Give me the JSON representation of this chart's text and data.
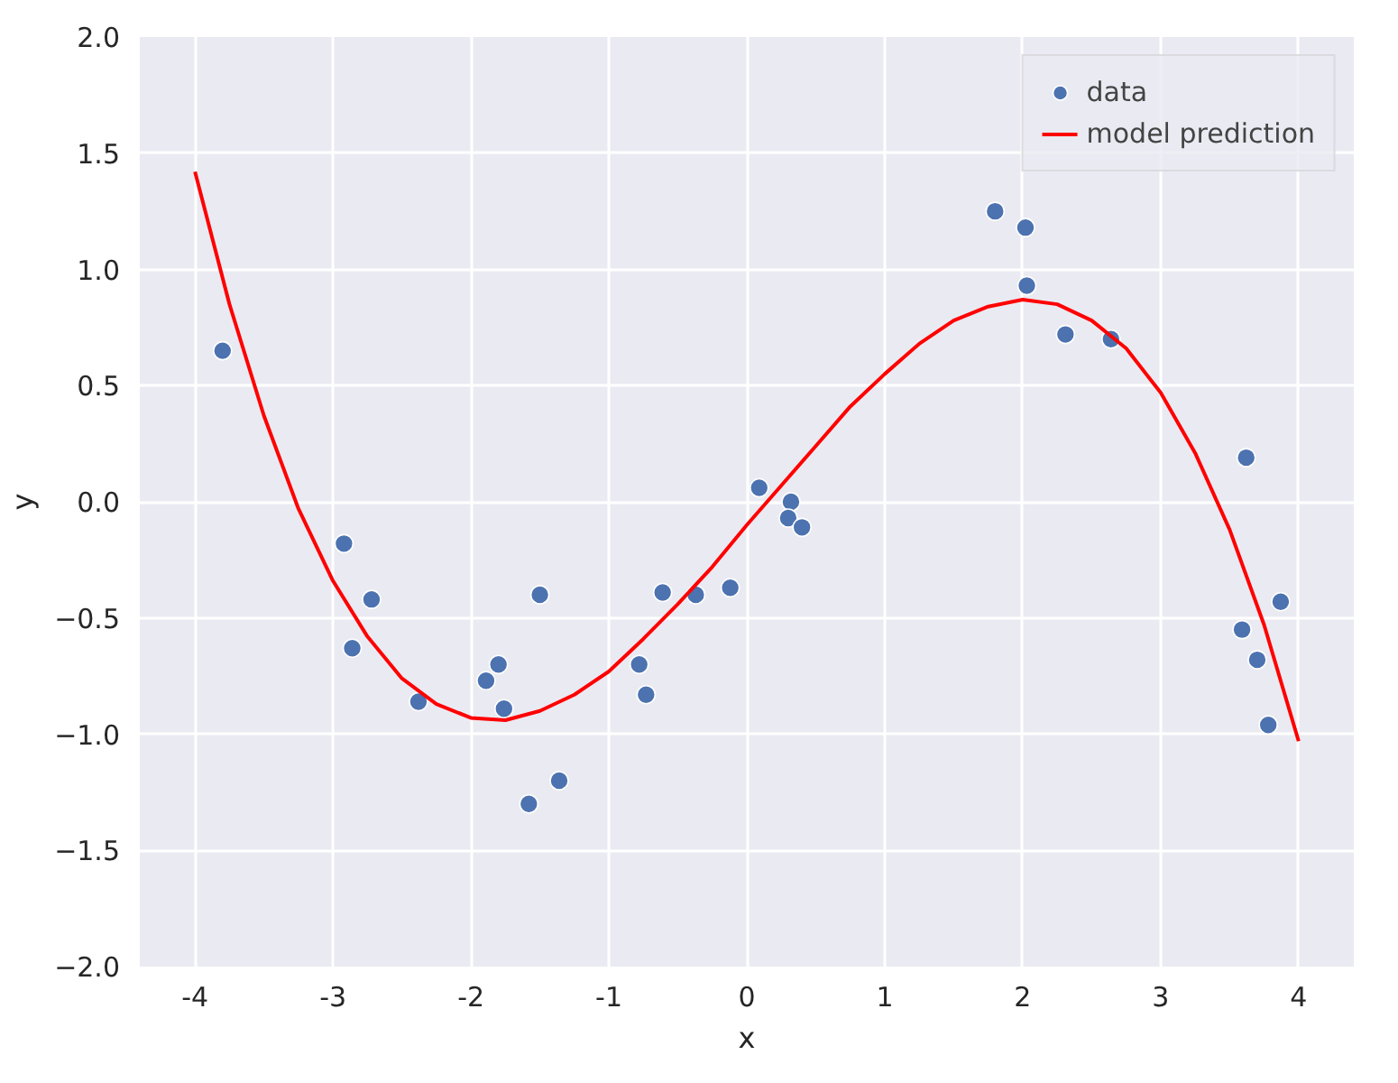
{
  "chart_data": {
    "type": "scatter",
    "xlabel": "x",
    "ylabel": "y",
    "xlim": [
      -4.4,
      4.4
    ],
    "ylim": [
      -2.0,
      2.0
    ],
    "xticks": [
      -4,
      -3,
      -2,
      -1,
      0,
      1,
      2,
      3,
      4
    ],
    "yticks": [
      {
        "value": -2,
        "label": "−2.0"
      },
      {
        "value": -1.5,
        "label": "−1.5"
      },
      {
        "value": -1,
        "label": "−1.0"
      },
      {
        "value": -0.5,
        "label": "−0.5"
      },
      {
        "value": 0,
        "label": "0.0"
      },
      {
        "value": 0.5,
        "label": "0.5"
      },
      {
        "value": 1,
        "label": "1.0"
      },
      {
        "value": 1.5,
        "label": "1.5"
      },
      {
        "value": 2,
        "label": "2.0"
      }
    ],
    "grid": true,
    "legend": "top right",
    "series": [
      {
        "name": "data",
        "type": "scatter",
        "marker": "circle",
        "color": "#4c72b0",
        "x": [
          -3.8,
          -2.92,
          -2.86,
          -2.72,
          -2.38,
          -1.89,
          -1.8,
          -1.76,
          -1.58,
          -1.5,
          -1.36,
          -0.78,
          -0.73,
          -0.61,
          -0.37,
          -0.12,
          0.09,
          0.32,
          0.3,
          0.4,
          1.8,
          2.02,
          2.03,
          2.31,
          2.64,
          3.62,
          3.59,
          3.7,
          3.78,
          3.87
        ],
        "values": [
          0.65,
          -0.18,
          -0.63,
          -0.42,
          -0.86,
          -0.77,
          -0.7,
          -0.89,
          -1.3,
          -0.4,
          -1.2,
          -0.7,
          -0.83,
          -0.39,
          -0.4,
          -0.37,
          0.06,
          0.0,
          -0.07,
          -0.11,
          1.25,
          1.18,
          0.93,
          0.72,
          0.7,
          0.19,
          -0.55,
          -0.68,
          -0.96,
          -0.43
        ]
      },
      {
        "name": "model prediction",
        "type": "line",
        "color": "#ff0000",
        "x": [
          -4,
          -3.75,
          -3.5,
          -3.25,
          -3,
          -2.75,
          -2.5,
          -2.25,
          -2,
          -1.75,
          -1.5,
          -1.25,
          -1,
          -0.75,
          -0.5,
          -0.25,
          0,
          0.25,
          0.5,
          0.75,
          1,
          1.25,
          1.5,
          1.75,
          2,
          2.25,
          2.5,
          2.75,
          3,
          3.25,
          3.5,
          3.75,
          4
        ],
        "values": [
          1.42,
          0.85,
          0.37,
          -0.03,
          -0.34,
          -0.58,
          -0.76,
          -0.87,
          -0.93,
          -0.94,
          -0.9,
          -0.83,
          -0.73,
          -0.59,
          -0.44,
          -0.28,
          -0.1,
          0.07,
          0.24,
          0.41,
          0.55,
          0.68,
          0.78,
          0.84,
          0.87,
          0.85,
          0.78,
          0.66,
          0.47,
          0.21,
          -0.12,
          -0.53,
          -1.03
        ]
      }
    ]
  }
}
